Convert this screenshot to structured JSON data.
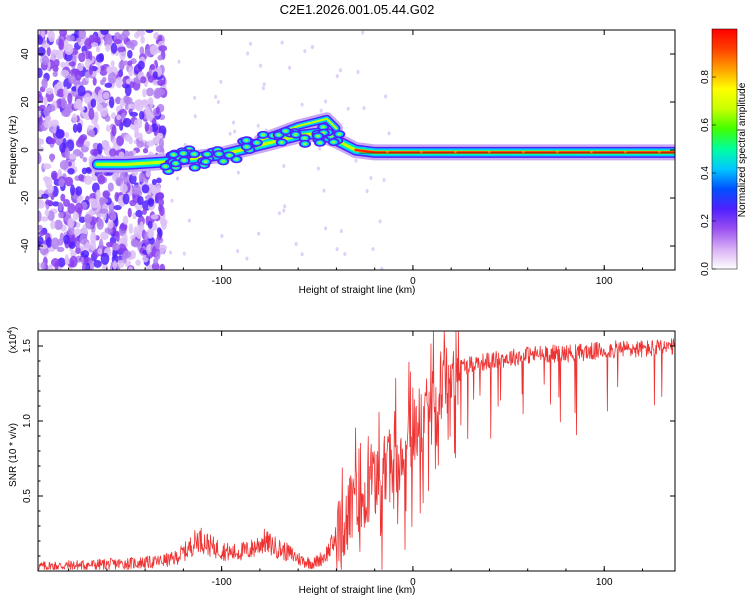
{
  "title": "C2E1.2026.001.05.44.G02",
  "chart_data": [
    {
      "type": "heatmap",
      "name": "spectrogram",
      "xlabel": "Height of straight line (km)",
      "ylabel": "Frequency (Hz)",
      "xlim": [
        -196,
        137
      ],
      "ylim": [
        -50,
        50
      ],
      "xticks": [
        -100,
        0,
        100
      ],
      "yticks": [
        -40,
        -20,
        0,
        20,
        40
      ],
      "ridge": {
        "description": "dominant frequency track",
        "points": [
          [
            -165,
            -6
          ],
          [
            -150,
            -6
          ],
          [
            -130,
            -5
          ],
          [
            -120,
            -4
          ],
          [
            -110,
            -3
          ],
          [
            -100,
            -2
          ],
          [
            -90,
            0
          ],
          [
            -80,
            2
          ],
          [
            -70,
            4
          ],
          [
            -60,
            6
          ],
          [
            -50,
            7
          ],
          [
            -40,
            4
          ],
          [
            -35,
            2
          ],
          [
            -30,
            0
          ],
          [
            -20,
            -1
          ],
          [
            -10,
            -1
          ],
          [
            0,
            -1
          ],
          [
            20,
            -1
          ],
          [
            40,
            -1
          ],
          [
            60,
            -1
          ],
          [
            80,
            -1
          ],
          [
            100,
            -1
          ],
          [
            137,
            -1
          ]
        ],
        "branch_points": [
          [
            -80,
            4
          ],
          [
            -70,
            7
          ],
          [
            -60,
            10
          ],
          [
            -50,
            12
          ],
          [
            -45,
            13
          ],
          [
            -40,
            9
          ]
        ]
      },
      "colorbar": {
        "label": "Normalized spectral amplitude",
        "ticks": [
          0.0,
          0.2,
          0.4,
          0.6,
          0.8
        ],
        "tick_labels": [
          "0.0",
          "0.2",
          "0.4",
          "0.6",
          "0.8"
        ],
        "range": [
          0,
          1
        ],
        "colormap": [
          "#ffffff",
          "#d8b0f5",
          "#9a50f0",
          "#5020ff",
          "#0050ff",
          "#00c8ff",
          "#00ffa0",
          "#40ff00",
          "#c8ff00",
          "#ffff00",
          "#ffa000",
          "#ff4000",
          "#ff0000"
        ]
      }
    },
    {
      "type": "line",
      "name": "snr",
      "xlabel": "Height of straight line (km)",
      "ylabel": "SNR (10 * v/v)",
      "multiplier": "(x10",
      "multiplier_exp": "4",
      "multiplier_close": ")",
      "xlim": [
        -196,
        137
      ],
      "ylim": [
        0,
        1.6
      ],
      "xticks": [
        -100,
        0,
        100
      ],
      "yticks": [
        0.5,
        1.0,
        1.5
      ],
      "ytick_labels": [
        "0.5",
        "1.0",
        "1.5"
      ],
      "line_color": "#ee3333",
      "baseline": {
        "x": [
          -196,
          -170,
          -150,
          -135,
          -125,
          -118,
          -112,
          -105,
          -95,
          -85,
          -78,
          -72,
          -65,
          -58,
          -52,
          -46,
          -40,
          -35,
          -30,
          -25,
          -20,
          -15,
          -10,
          -5,
          0,
          5,
          10,
          15,
          20,
          25,
          30,
          40,
          50,
          60,
          70,
          80,
          90,
          100,
          110,
          120,
          137
        ],
        "y": [
          0.03,
          0.04,
          0.05,
          0.06,
          0.08,
          0.14,
          0.22,
          0.16,
          0.12,
          0.14,
          0.2,
          0.16,
          0.12,
          0.07,
          0.05,
          0.1,
          0.22,
          0.35,
          0.45,
          0.5,
          0.6,
          0.65,
          0.75,
          0.8,
          0.9,
          1.0,
          1.1,
          1.25,
          1.32,
          1.36,
          1.38,
          1.4,
          1.42,
          1.44,
          1.45,
          1.45,
          1.46,
          1.47,
          1.48,
          1.48,
          1.49
        ]
      }
    }
  ]
}
